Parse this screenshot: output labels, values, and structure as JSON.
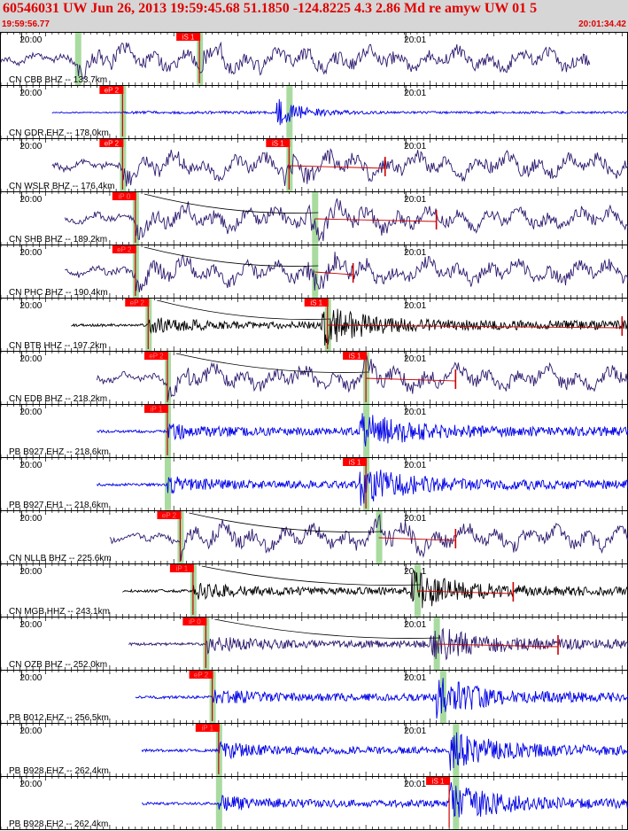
{
  "header": {
    "title": "60546031 UW Jun 26, 2013 19:59:45.68   51.1850 -124.8225  4.3 2.86 Md re amyw UW 01   5",
    "start_time": "19:59:56.77",
    "end_time": "20:01:34.42"
  },
  "colors": {
    "header_bg": "#d6d6d6",
    "header_text": "#e00000",
    "pick_box": "#ff0000",
    "pick_line": "#cc0000",
    "theo_band": "#a9dba0",
    "trace_blue": "#0000e6",
    "trace_purple": "#2e1a6e",
    "trace_black": "#000000",
    "synthetic_red": "#cc0000"
  },
  "chart_data": {
    "type": "seismogram",
    "x_range": [
      "19:59:56.77",
      "20:01:34.42"
    ],
    "time_ticks": [
      "20:00",
      "20:01"
    ],
    "traces": [
      {
        "label": "CN CBB BHZ -- 133.7km",
        "color": "purple",
        "start_s": 0,
        "end_s": 92,
        "picks": [
          {
            "phase": "iS 1",
            "t": 31,
            "dim": false
          }
        ],
        "bands": [
          12,
          31
        ],
        "arc": false,
        "synth": null,
        "style": "swell"
      },
      {
        "label": "CN GDR EHZ -- 178.0km",
        "color": "blue",
        "start_s": 8,
        "end_s": 101,
        "picks": [
          {
            "phase": "eP 2",
            "t": 19,
            "dim": false
          }
        ],
        "bands": [
          19,
          45
        ],
        "arc": false,
        "synth": null,
        "style": "quiet"
      },
      {
        "label": "CN WSLR BHZ -- 176.4km",
        "color": "purple",
        "start_s": 8,
        "end_s": 101,
        "picks": [
          {
            "phase": "eP 2",
            "t": 19,
            "dim": false
          },
          {
            "phase": "iS 1",
            "t": 45,
            "dim": false
          }
        ],
        "bands": [
          19,
          45
        ],
        "arc": false,
        "synth": [
          45,
          60
        ],
        "style": "swell"
      },
      {
        "label": "CN SHB BHZ -- 189.2km",
        "color": "purple",
        "start_s": 10,
        "end_s": 103,
        "picks": [
          {
            "phase": "iP 0",
            "t": 21,
            "dim": true
          }
        ],
        "bands": [
          21,
          49
        ],
        "arc": [
          21,
          49
        ],
        "synth": [
          49,
          68
        ],
        "style": "swell"
      },
      {
        "label": "CN PHC BHZ -- 190.4km",
        "color": "purple",
        "start_s": 10,
        "end_s": 103,
        "picks": [
          {
            "phase": "eP 2",
            "t": 21,
            "dim": true
          }
        ],
        "bands": [
          21,
          49
        ],
        "arc": [
          21,
          49
        ],
        "synth": [
          49,
          55
        ],
        "style": "swell"
      },
      {
        "label": "CN BTB HHZ -- 197.2km",
        "color": "black",
        "start_s": 11,
        "end_s": 104,
        "picks": [
          {
            "phase": "eP 2",
            "t": 23,
            "dim": true
          },
          {
            "phase": "iS 1",
            "t": 51,
            "dim": false
          }
        ],
        "bands": [
          23,
          51
        ],
        "arc": [
          23,
          51
        ],
        "synth": [
          51,
          97
        ],
        "style": "burst"
      },
      {
        "label": "CN EDB BHZ -- 218.2km",
        "color": "purple",
        "start_s": 15,
        "end_s": 108,
        "picks": [
          {
            "phase": "eP 2",
            "t": 26,
            "dim": true
          },
          {
            "phase": "iS 1",
            "t": 57,
            "dim": false
          }
        ],
        "bands": [
          26,
          57
        ],
        "arc": [
          26,
          57
        ],
        "synth": [
          57,
          71
        ],
        "style": "swell"
      },
      {
        "label": "PB B927 EHZ -- 218.6km",
        "color": "blue",
        "start_s": 15,
        "end_s": 108,
        "picks": [
          {
            "phase": "iP 1",
            "t": 26,
            "dim": true
          }
        ],
        "bands": [
          26,
          57
        ],
        "arc": false,
        "synth": null,
        "style": "burst"
      },
      {
        "label": "PB B927 EH1 -- 218.6km",
        "color": "blue",
        "start_s": 15,
        "end_s": 108,
        "picks": [
          {
            "phase": "iS 1",
            "t": 57,
            "dim": false
          }
        ],
        "bands": [
          26,
          57
        ],
        "arc": false,
        "synth": null,
        "style": "burst"
      },
      {
        "label": "CN NLLB BHZ -- 225.6km",
        "color": "purple",
        "start_s": 17,
        "end_s": 110,
        "picks": [
          {
            "phase": "eP 2",
            "t": 28,
            "dim": true
          }
        ],
        "bands": [
          28,
          59
        ],
        "arc": [
          28,
          59
        ],
        "synth": [
          59,
          71
        ],
        "style": "swell"
      },
      {
        "label": "CN MGB HHZ -- 243.1km",
        "color": "black",
        "start_s": 19,
        "end_s": 112,
        "picks": [
          {
            "phase": "iP 1",
            "t": 30,
            "dim": true
          }
        ],
        "bands": [
          30,
          65
        ],
        "arc": [
          30,
          65
        ],
        "synth": [
          65,
          80
        ],
        "style": "burst"
      },
      {
        "label": "CN OZB BHZ -- 252.0km",
        "color": "purple",
        "start_s": 20,
        "end_s": 113,
        "picks": [
          {
            "phase": "iP 0",
            "t": 32,
            "dim": true
          }
        ],
        "bands": [
          32,
          68
        ],
        "arc": [
          32,
          68
        ],
        "synth": [
          68,
          87
        ],
        "style": "burst"
      },
      {
        "label": "PB B012 EHZ -- 256.5km",
        "color": "blue",
        "start_s": 21,
        "end_s": 114,
        "picks": [
          {
            "phase": "eP 2",
            "t": 33,
            "dim": true
          }
        ],
        "bands": [
          33,
          69
        ],
        "arc": false,
        "synth": null,
        "style": "burst"
      },
      {
        "label": "PB B928 EHZ -- 262.4km",
        "color": "blue",
        "start_s": 22,
        "end_s": 115,
        "picks": [
          {
            "phase": "iP 1",
            "t": 34,
            "dim": true
          }
        ],
        "bands": [
          34,
          71
        ],
        "arc": false,
        "synth": null,
        "style": "burst"
      },
      {
        "label": "PB B928 EH2 -- 262.4km",
        "color": "blue",
        "start_s": 22,
        "end_s": 115,
        "picks": [
          {
            "phase": "iS 1",
            "t": 70,
            "dim": false
          }
        ],
        "bands": [
          34,
          71
        ],
        "arc": false,
        "synth": null,
        "style": "burst"
      }
    ]
  }
}
